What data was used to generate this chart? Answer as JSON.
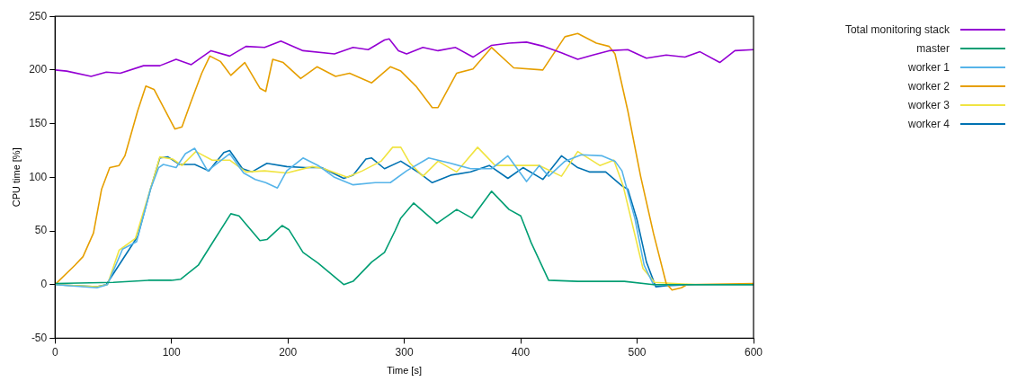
{
  "chart_data": {
    "type": "line",
    "xlabel": "Time [s]",
    "ylabel": "CPU time [%]",
    "xlim": [
      0,
      600
    ],
    "xticks": [
      0,
      100,
      200,
      300,
      400,
      500,
      600
    ],
    "ylim": [
      -50,
      250
    ],
    "yticks": [
      -50,
      0,
      50,
      100,
      150,
      200,
      250
    ],
    "grid": false,
    "legend": "top right",
    "marker": "none",
    "line_style": "solid",
    "series": [
      {
        "name": "Total monitoring stack",
        "color": "#9400d3",
        "x": [
          0,
          10,
          31,
          44,
          56,
          76,
          90,
          104,
          117,
          134,
          150,
          164,
          180,
          194,
          213,
          240,
          256,
          269,
          283,
          287,
          295,
          302,
          316,
          329,
          344,
          359,
          375,
          390,
          405,
          420,
          435,
          449,
          462,
          476,
          492,
          508,
          525,
          541,
          554,
          571,
          584,
          600
        ],
        "values": [
          200,
          199,
          194,
          198,
          197,
          204,
          204,
          210,
          205,
          218,
          213,
          222,
          221,
          227,
          218,
          215,
          221,
          219,
          228,
          229,
          218,
          215,
          221,
          218,
          221,
          212,
          223,
          225,
          226,
          222,
          216,
          210,
          214,
          218,
          219,
          211,
          214,
          212,
          217,
          207,
          218,
          219
        ]
      },
      {
        "name": "master",
        "color": "#009e73",
        "x": [
          0,
          50,
          80,
          100,
          108,
          123,
          137,
          151,
          158,
          176,
          182,
          195,
          201,
          213,
          226,
          248,
          256,
          272,
          283,
          292,
          297,
          308,
          328,
          345,
          358,
          375,
          390,
          400,
          409,
          424,
          449,
          489,
          514,
          550,
          600
        ],
        "values": [
          1,
          2,
          4,
          4,
          5,
          18,
          42,
          66,
          64,
          41,
          42,
          55,
          51,
          30,
          20,
          0,
          3,
          21,
          30,
          50,
          62,
          76,
          57,
          70,
          62,
          87,
          70,
          64,
          39,
          4,
          3,
          3,
          0,
          0,
          0
        ]
      },
      {
        "name": "worker 1",
        "color": "#56b4e9",
        "x": [
          0,
          36,
          45,
          58,
          70,
          82,
          89,
          93,
          104,
          112,
          120,
          131,
          150,
          162,
          172,
          181,
          191,
          199,
          213,
          226,
          240,
          256,
          275,
          288,
          302,
          321,
          340,
          357,
          375,
          389,
          405,
          416,
          424,
          438,
          452,
          470,
          481,
          487,
          498,
          506,
          514,
          550,
          600
        ],
        "values": [
          0,
          -3,
          0,
          33,
          40,
          89,
          109,
          112,
          109,
          122,
          127,
          106,
          122,
          104,
          98,
          95,
          90,
          106,
          118,
          111,
          100,
          93,
          95,
          95,
          106,
          118,
          113,
          108,
          108,
          120,
          96,
          111,
          101,
          115,
          121,
          120,
          115,
          106,
          62,
          18,
          0,
          0,
          0
        ]
      },
      {
        "name": "worker 2",
        "color": "#e69f00",
        "x": [
          0,
          17,
          24,
          33,
          40,
          47,
          55,
          60,
          71,
          78,
          85,
          103,
          109,
          117,
          126,
          133,
          142,
          151,
          163,
          176,
          181,
          187,
          196,
          211,
          225,
          241,
          253,
          272,
          288,
          297,
          310,
          324,
          329,
          345,
          359,
          375,
          394,
          419,
          438,
          449,
          465,
          476,
          481,
          492,
          503,
          514,
          525,
          530,
          538,
          543,
          600
        ],
        "values": [
          0,
          18,
          26,
          48,
          89,
          109,
          111,
          120,
          162,
          185,
          182,
          145,
          147,
          171,
          197,
          213,
          208,
          195,
          207,
          183,
          180,
          210,
          207,
          192,
          203,
          194,
          197,
          188,
          203,
          199,
          185,
          165,
          165,
          197,
          201,
          221,
          202,
          200,
          231,
          234,
          225,
          222,
          215,
          162,
          101,
          48,
          1,
          -5,
          -3,
          0,
          1
        ]
      },
      {
        "name": "worker 3",
        "color": "#f0e442",
        "x": [
          0,
          36,
          45,
          55,
          69,
          85,
          90,
          101,
          109,
          121,
          135,
          150,
          164,
          180,
          199,
          221,
          231,
          251,
          264,
          280,
          290,
          297,
          305,
          316,
          329,
          345,
          363,
          378,
          394,
          416,
          435,
          449,
          468,
          480,
          488,
          505,
          515,
          550,
          600
        ],
        "values": [
          0,
          -2,
          0,
          32,
          43,
          100,
          119,
          117,
          111,
          124,
          116,
          116,
          105,
          106,
          104,
          110,
          108,
          100,
          106,
          115,
          128,
          128,
          113,
          101,
          115,
          105,
          128,
          111,
          111,
          111,
          101,
          124,
          111,
          116,
          92,
          15,
          2,
          0,
          0
        ]
      },
      {
        "name": "worker 4",
        "color": "#0072b2",
        "x": [
          0,
          36,
          44,
          71,
          82,
          90,
          97,
          107,
          120,
          132,
          145,
          150,
          161,
          169,
          182,
          199,
          215,
          229,
          248,
          256,
          267,
          272,
          283,
          297,
          313,
          324,
          340,
          357,
          373,
          389,
          402,
          419,
          435,
          449,
          459,
          473,
          487,
          492,
          500,
          508,
          516,
          525,
          550,
          600
        ],
        "values": [
          0,
          -2,
          0,
          45,
          89,
          118,
          119,
          112,
          112,
          106,
          123,
          125,
          108,
          105,
          113,
          110,
          109,
          109,
          99,
          102,
          117,
          118,
          108,
          115,
          104,
          95,
          102,
          105,
          111,
          99,
          109,
          98,
          120,
          109,
          105,
          105,
          92,
          89,
          60,
          21,
          -2,
          -1,
          0,
          0
        ]
      }
    ]
  }
}
